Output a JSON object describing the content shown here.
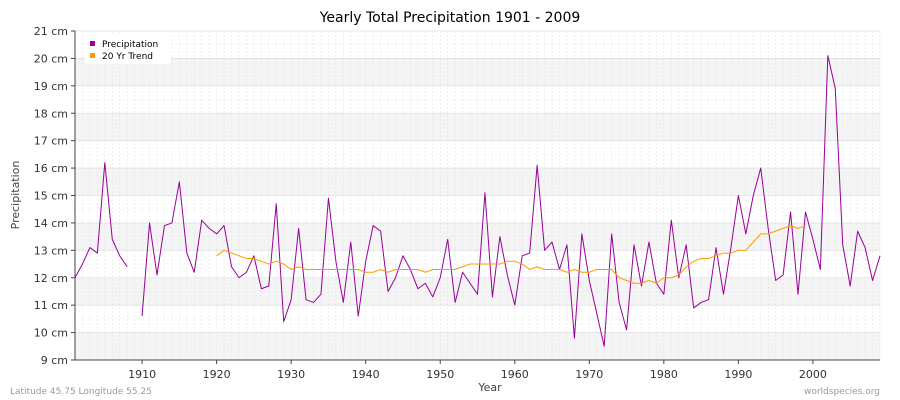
{
  "chart_data": {
    "type": "line",
    "title": "Yearly Total Precipitation 1901 - 2009",
    "xlabel": "Year",
    "ylabel": "Precipitation",
    "xlim": [
      1901,
      2009
    ],
    "ylim": [
      9,
      21
    ],
    "x_ticks": [
      1910,
      1920,
      1930,
      1940,
      1950,
      1960,
      1970,
      1980,
      1990,
      2000
    ],
    "y_ticks": [
      9,
      10,
      11,
      12,
      13,
      14,
      15,
      16,
      17,
      18,
      19,
      20,
      21
    ],
    "y_tick_labels": [
      "9 cm",
      "10 cm",
      "11 cm",
      "12 cm",
      "13 cm",
      "14 cm",
      "15 cm",
      "16 cm",
      "17 cm",
      "18 cm",
      "19 cm",
      "20 cm",
      "21 cm"
    ],
    "legend_position": "top-left",
    "series": [
      {
        "name": "Precipitation",
        "color": "#990099",
        "points": [
          [
            1901,
            12.0
          ],
          [
            1902,
            12.5
          ],
          [
            1903,
            13.1
          ],
          [
            1904,
            12.9
          ],
          [
            1905,
            16.2
          ],
          [
            1906,
            13.4
          ],
          [
            1907,
            12.8
          ],
          [
            1908,
            12.4
          ],
          null,
          [
            1910,
            10.6
          ],
          [
            1911,
            14.0
          ],
          [
            1912,
            12.1
          ],
          [
            1913,
            13.9
          ],
          [
            1914,
            14.0
          ],
          [
            1915,
            15.5
          ],
          [
            1916,
            12.9
          ],
          [
            1917,
            12.2
          ],
          [
            1918,
            14.1
          ],
          [
            1919,
            13.8
          ],
          [
            1920,
            13.6
          ],
          [
            1921,
            13.9
          ],
          [
            1922,
            12.4
          ],
          [
            1923,
            12.0
          ],
          [
            1924,
            12.2
          ],
          [
            1925,
            12.8
          ],
          [
            1926,
            11.6
          ],
          [
            1927,
            11.7
          ],
          [
            1928,
            14.7
          ],
          [
            1929,
            10.4
          ],
          [
            1930,
            11.2
          ],
          [
            1931,
            13.8
          ],
          [
            1932,
            11.2
          ],
          [
            1933,
            11.1
          ],
          [
            1934,
            11.4
          ],
          [
            1935,
            14.9
          ],
          [
            1936,
            12.6
          ],
          [
            1937,
            11.1
          ],
          [
            1938,
            13.3
          ],
          [
            1939,
            10.6
          ],
          [
            1940,
            12.6
          ],
          [
            1941,
            13.9
          ],
          [
            1942,
            13.7
          ],
          [
            1943,
            11.5
          ],
          [
            1944,
            12.0
          ],
          [
            1945,
            12.8
          ],
          [
            1946,
            12.3
          ],
          [
            1947,
            11.6
          ],
          [
            1948,
            11.8
          ],
          [
            1949,
            11.3
          ],
          [
            1950,
            12.0
          ],
          [
            1951,
            13.4
          ],
          [
            1952,
            11.1
          ],
          [
            1953,
            12.2
          ],
          [
            1954,
            11.8
          ],
          [
            1955,
            11.4
          ],
          [
            1956,
            15.1
          ],
          [
            1957,
            11.3
          ],
          [
            1958,
            13.5
          ],
          [
            1959,
            12.1
          ],
          [
            1960,
            11.0
          ],
          [
            1961,
            12.8
          ],
          [
            1962,
            12.9
          ],
          [
            1963,
            16.1
          ],
          [
            1964,
            13.0
          ],
          [
            1965,
            13.3
          ],
          [
            1966,
            12.3
          ],
          [
            1967,
            13.2
          ],
          [
            1968,
            9.8
          ],
          [
            1969,
            13.6
          ],
          [
            1970,
            11.9
          ],
          [
            1971,
            10.7
          ],
          [
            1972,
            9.5
          ],
          [
            1973,
            13.6
          ],
          [
            1974,
            11.1
          ],
          [
            1975,
            10.1
          ],
          [
            1976,
            13.2
          ],
          [
            1977,
            11.7
          ],
          [
            1978,
            13.3
          ],
          [
            1979,
            11.8
          ],
          [
            1980,
            11.4
          ],
          [
            1981,
            14.1
          ],
          [
            1982,
            12.0
          ],
          [
            1983,
            13.2
          ],
          [
            1984,
            10.9
          ],
          [
            1985,
            11.1
          ],
          [
            1986,
            11.2
          ],
          [
            1987,
            13.1
          ],
          [
            1988,
            11.4
          ],
          [
            1989,
            13.1
          ],
          [
            1990,
            15.0
          ],
          [
            1991,
            13.6
          ],
          [
            1992,
            15.0
          ],
          [
            1993,
            16.0
          ],
          [
            1994,
            13.8
          ],
          [
            1995,
            11.9
          ],
          [
            1996,
            12.1
          ],
          [
            1997,
            14.4
          ],
          [
            1998,
            11.4
          ],
          [
            1999,
            14.4
          ],
          [
            2000,
            13.4
          ],
          [
            2001,
            12.3
          ],
          [
            2002,
            20.1
          ],
          [
            2003,
            18.9
          ],
          [
            2004,
            13.2
          ],
          [
            2005,
            11.7
          ],
          [
            2006,
            13.7
          ],
          [
            2007,
            13.1
          ],
          [
            2008,
            11.9
          ],
          [
            2009,
            12.8
          ]
        ]
      },
      {
        "name": "20 Yr Trend",
        "color": "#ff9900",
        "points": [
          [
            1920,
            12.8
          ],
          [
            1921,
            13.0
          ],
          [
            1922,
            12.9
          ],
          [
            1923,
            12.8
          ],
          [
            1924,
            12.7
          ],
          [
            1925,
            12.7
          ],
          [
            1926,
            12.6
          ],
          [
            1927,
            12.5
          ],
          [
            1928,
            12.6
          ],
          [
            1929,
            12.5
          ],
          [
            1930,
            12.3
          ],
          [
            1931,
            12.4
          ],
          [
            1932,
            12.3
          ],
          [
            1933,
            12.3
          ],
          [
            1934,
            12.3
          ],
          [
            1935,
            12.3
          ],
          [
            1936,
            12.3
          ],
          [
            1937,
            12.3
          ],
          [
            1938,
            12.3
          ],
          [
            1939,
            12.3
          ],
          [
            1940,
            12.2
          ],
          [
            1941,
            12.2
          ],
          [
            1942,
            12.3
          ],
          [
            1943,
            12.2
          ],
          [
            1944,
            12.3
          ],
          [
            1945,
            12.3
          ],
          [
            1946,
            12.3
          ],
          [
            1947,
            12.3
          ],
          [
            1948,
            12.2
          ],
          [
            1949,
            12.3
          ],
          [
            1950,
            12.3
          ],
          [
            1951,
            12.3
          ],
          [
            1952,
            12.3
          ],
          [
            1953,
            12.4
          ],
          [
            1954,
            12.5
          ],
          [
            1955,
            12.5
          ],
          [
            1956,
            12.5
          ],
          [
            1957,
            12.5
          ],
          [
            1958,
            12.5
          ],
          [
            1959,
            12.6
          ],
          [
            1960,
            12.6
          ],
          [
            1961,
            12.5
          ],
          [
            1962,
            12.3
          ],
          [
            1963,
            12.4
          ],
          [
            1964,
            12.3
          ],
          [
            1965,
            12.3
          ],
          [
            1966,
            12.3
          ],
          [
            1967,
            12.2
          ],
          [
            1968,
            12.3
          ],
          [
            1969,
            12.2
          ],
          [
            1970,
            12.2
          ],
          [
            1971,
            12.3
          ],
          [
            1972,
            12.3
          ],
          [
            1973,
            12.3
          ],
          [
            1974,
            12.0
          ],
          [
            1975,
            11.9
          ],
          [
            1976,
            11.8
          ],
          [
            1977,
            11.8
          ],
          [
            1978,
            11.9
          ],
          [
            1979,
            11.8
          ],
          [
            1980,
            12.0
          ],
          [
            1981,
            12.0
          ],
          [
            1982,
            12.1
          ],
          [
            1983,
            12.4
          ],
          [
            1984,
            12.6
          ],
          [
            1985,
            12.7
          ],
          [
            1986,
            12.7
          ],
          [
            1987,
            12.8
          ],
          [
            1988,
            12.9
          ],
          [
            1989,
            12.9
          ],
          [
            1990,
            13.0
          ],
          [
            1991,
            13.0
          ],
          [
            1992,
            13.3
          ],
          [
            1993,
            13.6
          ],
          [
            1994,
            13.6
          ],
          [
            1995,
            13.7
          ],
          [
            1996,
            13.8
          ],
          [
            1997,
            13.9
          ],
          [
            1998,
            13.8
          ],
          [
            1999,
            13.9
          ]
        ]
      }
    ]
  },
  "footer": {
    "left": "Latitude 45.75 Longitude 55.25",
    "right": "worldspecies.org"
  }
}
